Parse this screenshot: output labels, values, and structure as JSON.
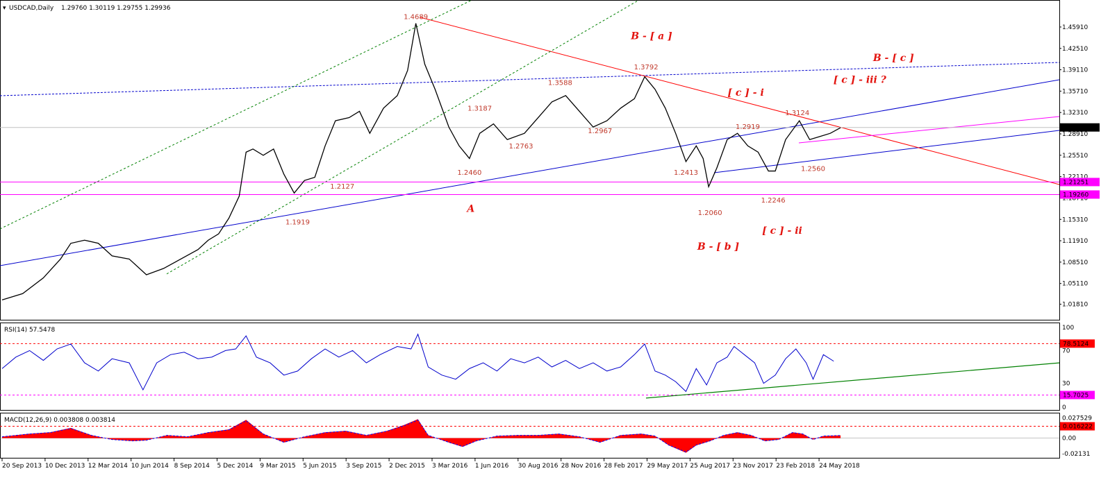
{
  "window": {
    "symbol_info": "USDCAD,Daily",
    "ohlc": "1.29760 1.30119 1.29755 1.29936"
  },
  "colors": {
    "price": "#000000",
    "trend_red": "#ff0000",
    "trend_blue": "#0000cc",
    "channel_green": "#008000",
    "magenta": "#ff00ff",
    "rsi_line": "#0000cc",
    "macd_hist": "#ff0000",
    "macd_signal": "#0000ff",
    "current_tag_bg": "#000000",
    "level_tag_bg": "#ff00ff",
    "rsi_tag_bg": "#ff0000"
  },
  "chart_data": [
    {
      "type": "line",
      "name": "price",
      "ylim": [
        1.0,
        1.48
      ],
      "y_ticks": [
        "1.45910",
        "1.42510",
        "1.39110",
        "1.35710",
        "1.32310",
        "1.28910",
        "1.25510",
        "1.22110",
        "1.18710",
        "1.15310",
        "1.11910",
        "1.08510",
        "1.05110",
        "1.01810"
      ],
      "x_ticks": [
        "20 Sep 2013",
        "10 Dec 2013",
        "12 Mar 2014",
        "10 Jun 2014",
        "8 Sep 2014",
        "5 Dec 2014",
        "9 Mar 2015",
        "5 Jun 2015",
        "3 Sep 2015",
        "2 Dec 2015",
        "3 Mar 2016",
        "1 Jun 2016",
        "30 Aug 2016",
        "28 Nov 2016",
        "28 Feb 2017",
        "29 May 2017",
        "25 Aug 2017",
        "23 Nov 2017",
        "23 Feb 2018",
        "24 May 2018"
      ],
      "x_range": [
        0,
        1230
      ],
      "points": [
        [
          0,
          1.025
        ],
        [
          30,
          1.035
        ],
        [
          60,
          1.06
        ],
        [
          85,
          1.09
        ],
        [
          100,
          1.115
        ],
        [
          120,
          1.12
        ],
        [
          140,
          1.115
        ],
        [
          160,
          1.095
        ],
        [
          185,
          1.09
        ],
        [
          210,
          1.065
        ],
        [
          235,
          1.075
        ],
        [
          260,
          1.09
        ],
        [
          285,
          1.105
        ],
        [
          300,
          1.12
        ],
        [
          315,
          1.13
        ],
        [
          330,
          1.155
        ],
        [
          345,
          1.19
        ],
        [
          355,
          1.26
        ],
        [
          365,
          1.265
        ],
        [
          380,
          1.255
        ],
        [
          395,
          1.265
        ],
        [
          410,
          1.225
        ],
        [
          425,
          1.195
        ],
        [
          440,
          1.215
        ],
        [
          455,
          1.22
        ],
        [
          470,
          1.27
        ],
        [
          485,
          1.31
        ],
        [
          505,
          1.315
        ],
        [
          520,
          1.325
        ],
        [
          535,
          1.29
        ],
        [
          555,
          1.33
        ],
        [
          575,
          1.35
        ],
        [
          590,
          1.39
        ],
        [
          602,
          1.465
        ],
        [
          615,
          1.4
        ],
        [
          630,
          1.36
        ],
        [
          650,
          1.3
        ],
        [
          665,
          1.27
        ],
        [
          680,
          1.25
        ],
        [
          695,
          1.29
        ],
        [
          715,
          1.305
        ],
        [
          735,
          1.28
        ],
        [
          760,
          1.29
        ],
        [
          780,
          1.315
        ],
        [
          800,
          1.34
        ],
        [
          820,
          1.35
        ],
        [
          840,
          1.325
        ],
        [
          860,
          1.3
        ],
        [
          880,
          1.31
        ],
        [
          900,
          1.33
        ],
        [
          920,
          1.345
        ],
        [
          935,
          1.38
        ],
        [
          950,
          1.36
        ],
        [
          965,
          1.33
        ],
        [
          980,
          1.29
        ],
        [
          995,
          1.245
        ],
        [
          1010,
          1.27
        ],
        [
          1020,
          1.25
        ],
        [
          1028,
          1.205
        ],
        [
          1040,
          1.235
        ],
        [
          1055,
          1.28
        ],
        [
          1070,
          1.29
        ],
        [
          1085,
          1.27
        ],
        [
          1100,
          1.26
        ],
        [
          1115,
          1.23
        ],
        [
          1125,
          1.23
        ],
        [
          1140,
          1.28
        ],
        [
          1160,
          1.31
        ],
        [
          1175,
          1.28
        ],
        [
          1190,
          1.285
        ],
        [
          1205,
          1.29
        ],
        [
          1220,
          1.299
        ]
      ],
      "current_price": "1.29936",
      "level_tags": [
        "1.21251",
        "1.19260"
      ],
      "level_values": [
        1.2125,
        1.1926
      ],
      "level_labels": [
        {
          "text": "1.4689",
          "x": 602,
          "y": 1.472
        },
        {
          "text": "1.3792",
          "x": 937,
          "y": 1.392
        },
        {
          "text": "1.3588",
          "x": 812,
          "y": 1.367
        },
        {
          "text": "1.3187",
          "x": 695,
          "y": 1.326
        },
        {
          "text": "1.3124",
          "x": 1157,
          "y": 1.319
        },
        {
          "text": "1.2967",
          "x": 870,
          "y": 1.29
        },
        {
          "text": "1.2919",
          "x": 1085,
          "y": 1.297
        },
        {
          "text": "1.2763",
          "x": 755,
          "y": 1.266
        },
        {
          "text": "1.2560",
          "x": 1180,
          "y": 1.23
        },
        {
          "text": "1.2460",
          "x": 680,
          "y": 1.224
        },
        {
          "text": "1.2413",
          "x": 995,
          "y": 1.224
        },
        {
          "text": "1.2127",
          "x": 495,
          "y": 1.202
        },
        {
          "text": "1.2246",
          "x": 1122,
          "y": 1.18
        },
        {
          "text": "1.2060",
          "x": 1030,
          "y": 1.16
        },
        {
          "text": "1.1919",
          "x": 430,
          "y": 1.145
        }
      ],
      "wave_labels": [
        {
          "text": "B - [ a ]",
          "x": 945,
          "y": 1.44
        },
        {
          "text": "B - [ c ]",
          "x": 1297,
          "y": 1.405
        },
        {
          "text": "[ c ] - i",
          "x": 1082,
          "y": 1.35
        },
        {
          "text": "[ c ] - iii  ?",
          "x": 1248,
          "y": 1.37
        },
        {
          "text": "A",
          "x": 682,
          "y": 1.165
        },
        {
          "text": "[ c ] - ii",
          "x": 1135,
          "y": 1.13
        },
        {
          "text": "B - [ b ]",
          "x": 1042,
          "y": 1.105
        }
      ]
    },
    {
      "type": "line",
      "name": "RSI(14)",
      "header": "RSI(14) 57.5478",
      "ylim": [
        0,
        100
      ],
      "y_ticks": [
        "100",
        "70",
        "30",
        "0"
      ],
      "level_tags": [
        "78.5124",
        "15.7025"
      ],
      "levels": [
        78.5124,
        15.7025
      ],
      "points": [
        [
          0,
          48
        ],
        [
          20,
          62
        ],
        [
          40,
          70
        ],
        [
          60,
          58
        ],
        [
          80,
          72
        ],
        [
          100,
          78
        ],
        [
          120,
          55
        ],
        [
          140,
          45
        ],
        [
          160,
          60
        ],
        [
          185,
          55
        ],
        [
          205,
          22
        ],
        [
          225,
          55
        ],
        [
          245,
          65
        ],
        [
          265,
          68
        ],
        [
          285,
          60
        ],
        [
          305,
          62
        ],
        [
          325,
          70
        ],
        [
          340,
          72
        ],
        [
          355,
          88
        ],
        [
          370,
          62
        ],
        [
          390,
          55
        ],
        [
          410,
          40
        ],
        [
          430,
          45
        ],
        [
          450,
          60
        ],
        [
          470,
          72
        ],
        [
          490,
          62
        ],
        [
          510,
          70
        ],
        [
          530,
          55
        ],
        [
          550,
          65
        ],
        [
          575,
          75
        ],
        [
          595,
          72
        ],
        [
          605,
          90
        ],
        [
          620,
          50
        ],
        [
          640,
          40
        ],
        [
          660,
          35
        ],
        [
          680,
          48
        ],
        [
          700,
          55
        ],
        [
          720,
          45
        ],
        [
          740,
          60
        ],
        [
          760,
          55
        ],
        [
          780,
          62
        ],
        [
          800,
          50
        ],
        [
          820,
          58
        ],
        [
          840,
          48
        ],
        [
          860,
          55
        ],
        [
          880,
          45
        ],
        [
          900,
          50
        ],
        [
          920,
          65
        ],
        [
          935,
          78
        ],
        [
          950,
          45
        ],
        [
          965,
          40
        ],
        [
          980,
          32
        ],
        [
          995,
          20
        ],
        [
          1010,
          48
        ],
        [
          1025,
          28
        ],
        [
          1040,
          55
        ],
        [
          1055,
          62
        ],
        [
          1065,
          75
        ],
        [
          1080,
          65
        ],
        [
          1095,
          55
        ],
        [
          1108,
          30
        ],
        [
          1125,
          40
        ],
        [
          1140,
          60
        ],
        [
          1155,
          72
        ],
        [
          1170,
          55
        ],
        [
          1180,
          35
        ],
        [
          1195,
          65
        ],
        [
          1210,
          57
        ]
      ]
    },
    {
      "type": "bar",
      "name": "MACD(12,26,9)",
      "header": "MACD(12,26,9) 0.003808 0.003814",
      "ylim": [
        -0.025,
        0.03
      ],
      "y_ticks": [
        "0.027529",
        "0.00",
        "-0.02131"
      ],
      "level_tags": [
        "0.016222"
      ],
      "levels": [
        0.016222
      ],
      "points": [
        [
          0,
          0.002
        ],
        [
          40,
          0.006
        ],
        [
          70,
          0.008
        ],
        [
          100,
          0.014
        ],
        [
          130,
          0.004
        ],
        [
          160,
          -0.002
        ],
        [
          190,
          -0.004
        ],
        [
          210,
          -0.003
        ],
        [
          240,
          0.004
        ],
        [
          270,
          0.002
        ],
        [
          300,
          0.008
        ],
        [
          330,
          0.012
        ],
        [
          355,
          0.025
        ],
        [
          380,
          0.006
        ],
        [
          410,
          -0.006
        ],
        [
          440,
          0.002
        ],
        [
          470,
          0.008
        ],
        [
          500,
          0.01
        ],
        [
          530,
          0.004
        ],
        [
          560,
          0.01
        ],
        [
          585,
          0.018
        ],
        [
          605,
          0.026
        ],
        [
          620,
          0.004
        ],
        [
          650,
          -0.006
        ],
        [
          670,
          -0.012
        ],
        [
          690,
          -0.004
        ],
        [
          720,
          0.003
        ],
        [
          750,
          0.004
        ],
        [
          780,
          0.004
        ],
        [
          810,
          0.006
        ],
        [
          840,
          0.002
        ],
        [
          870,
          -0.006
        ],
        [
          900,
          0.004
        ],
        [
          930,
          0.006
        ],
        [
          950,
          0.003
        ],
        [
          970,
          -0.01
        ],
        [
          995,
          -0.02
        ],
        [
          1010,
          -0.01
        ],
        [
          1030,
          -0.004
        ],
        [
          1050,
          0.004
        ],
        [
          1070,
          0.008
        ],
        [
          1090,
          0.004
        ],
        [
          1110,
          -0.004
        ],
        [
          1130,
          -0.002
        ],
        [
          1150,
          0.008
        ],
        [
          1165,
          0.006
        ],
        [
          1180,
          -0.002
        ],
        [
          1195,
          0.003
        ],
        [
          1220,
          0.0038
        ]
      ]
    }
  ]
}
